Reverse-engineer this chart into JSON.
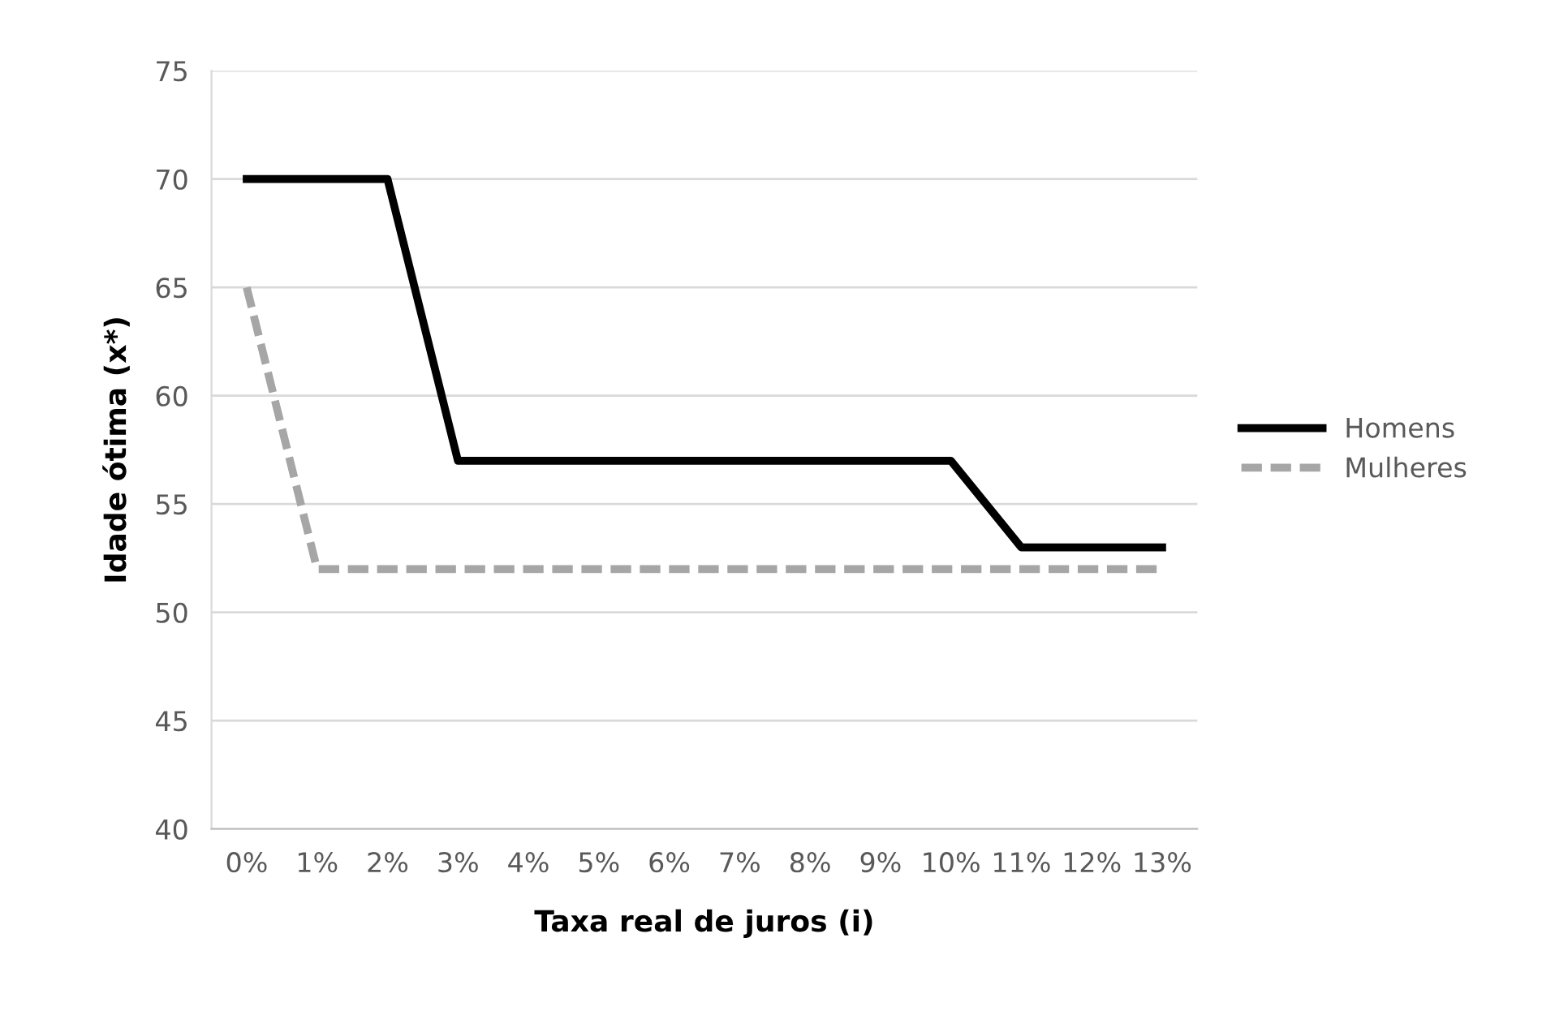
{
  "chart_data": {
    "type": "line",
    "xlabel": "Taxa real de juros (i)",
    "ylabel": "Idade ótima (x*)",
    "categories": [
      "0%",
      "1%",
      "2%",
      "3%",
      "4%",
      "5%",
      "6%",
      "7%",
      "8%",
      "9%",
      "10%",
      "11%",
      "12%",
      "13%"
    ],
    "series": [
      {
        "name": "Homens",
        "color": "#000000",
        "line_style": "solid",
        "values": [
          70,
          70,
          70,
          57,
          57,
          57,
          57,
          57,
          57,
          57,
          57,
          53,
          53,
          53
        ]
      },
      {
        "name": "Mulheres",
        "color": "#a6a6a6",
        "line_style": "dashed",
        "values": [
          65,
          52,
          52,
          52,
          52,
          52,
          52,
          52,
          52,
          52,
          52,
          52,
          52,
          52
        ]
      }
    ],
    "ylim": [
      40,
      75
    ],
    "yticks": [
      40,
      45,
      50,
      55,
      60,
      65,
      70,
      75
    ],
    "grid": "y",
    "legend": "right",
    "marker": "none"
  }
}
